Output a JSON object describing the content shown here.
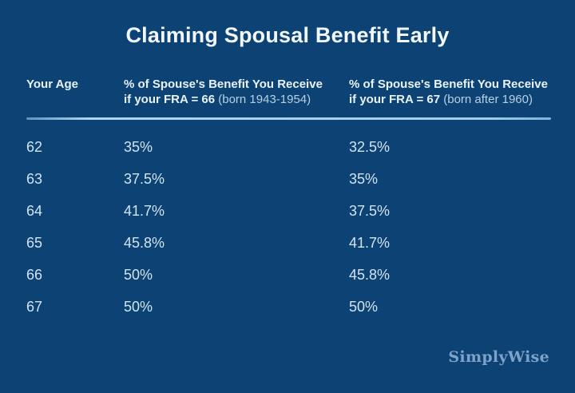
{
  "title": "Claiming Spousal Benefit Early",
  "colors": {
    "background": "#0d4374",
    "title_text": "#f2f7fc",
    "header_text": "#e9f2f9",
    "note_text": "#b9cfe3",
    "data_text": "#d2e3f2",
    "brand_text": "#7fa3c8"
  },
  "table": {
    "headers": {
      "age": "Your Age",
      "fra66": {
        "line1": "% of Spouse's Benefit You Receive",
        "line2_bold": "if your FRA = 66",
        "line2_note": "(born 1943-1954)"
      },
      "fra67": {
        "line1": "% of Spouse's Benefit You Receive",
        "line2_bold": "if your FRA = 67",
        "line2_note": "(born after 1960)"
      }
    },
    "rows": [
      {
        "age": "62",
        "fra66": "35%",
        "fra67": "32.5%"
      },
      {
        "age": "63",
        "fra66": "37.5%",
        "fra67": "35%"
      },
      {
        "age": "64",
        "fra66": "41.7%",
        "fra67": "37.5%"
      },
      {
        "age": "65",
        "fra66": "45.8%",
        "fra67": "41.7%"
      },
      {
        "age": "66",
        "fra66": "50%",
        "fra67": "45.8%"
      },
      {
        "age": "67",
        "fra66": "50%",
        "fra67": "50%"
      }
    ]
  },
  "footer": {
    "brand": "SimplyWise"
  },
  "chart_data": {
    "type": "table",
    "title": "Claiming Spousal Benefit Early",
    "columns": [
      "Your Age",
      "% of Spouse's Benefit You Receive if your FRA = 66 (born 1943-1954)",
      "% of Spouse's Benefit You Receive if your FRA = 67 (born after 1960)"
    ],
    "rows": [
      [
        "62",
        "35%",
        "32.5%"
      ],
      [
        "63",
        "37.5%",
        "35%"
      ],
      [
        "64",
        "41.7%",
        "37.5%"
      ],
      [
        "65",
        "45.8%",
        "41.7%"
      ],
      [
        "66",
        "50%",
        "45.8%"
      ],
      [
        "67",
        "50%",
        "50%"
      ]
    ]
  }
}
